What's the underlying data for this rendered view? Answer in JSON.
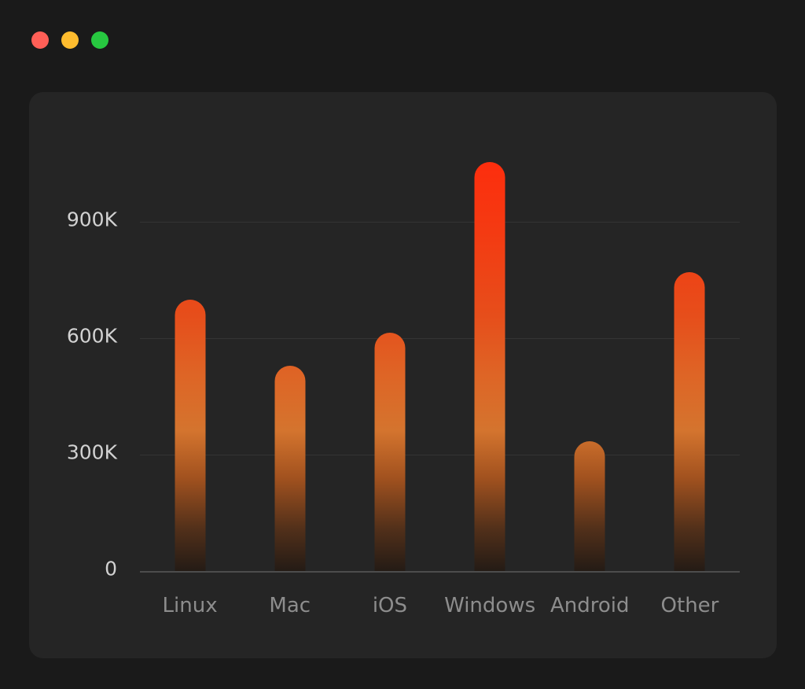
{
  "window": {
    "controls": [
      {
        "name": "close",
        "color": "#ff5f57"
      },
      {
        "name": "minimize",
        "color": "#febc2e"
      },
      {
        "name": "zoom",
        "color": "#27c840"
      }
    ]
  },
  "chart_data": {
    "type": "bar",
    "categories": [
      "Linux",
      "Mac",
      "iOS",
      "Windows",
      "Android",
      "Other"
    ],
    "values": [
      700,
      530,
      615,
      1055,
      335,
      770
    ],
    "unit": "K",
    "y_ticks": [
      {
        "label": "900K",
        "value": 900
      },
      {
        "label": "600K",
        "value": 600
      },
      {
        "label": "300K",
        "value": 300
      },
      {
        "label": "0",
        "value": 0
      }
    ],
    "ylim": [
      0,
      1095
    ],
    "grid": true,
    "legend": false,
    "title": "",
    "xlabel": "",
    "ylabel": "",
    "panel_background": "#252525",
    "page_background": "#1a1a1a",
    "bar_gradient": [
      "#241b15 0%",
      "#52301a 10%",
      "#a2521f 22%",
      "#d4742e 33%",
      "#de6526 46%",
      "#e64e1b 60%",
      "#f43a12 80%",
      "#ff2b0c 100%"
    ]
  }
}
